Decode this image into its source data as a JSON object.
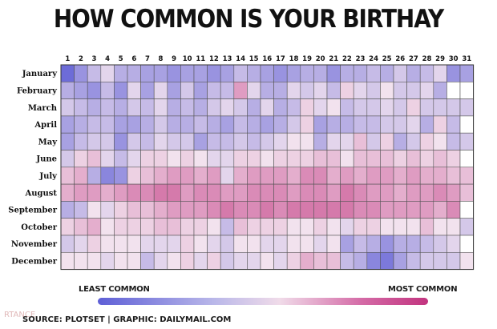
{
  "title": "HOW COMMON IS YOUR BIRTHAY",
  "legend": {
    "low_label": "LEAST COMMON",
    "high_label": "MOST COMMON"
  },
  "source": "SOURCE: PLOTSET | GRAPHIC: DAILYMAIL.COM",
  "watermark": "RTANCE",
  "colors": {
    "least": "#5e5fd6",
    "mid": "#f2e2ee",
    "most": "#c2347f",
    "grid": "#555555"
  },
  "chart_data": {
    "type": "heatmap",
    "title": "HOW COMMON IS YOUR BIRTHAY",
    "x_labels": [
      "1",
      "2",
      "3",
      "4",
      "5",
      "6",
      "7",
      "8",
      "9",
      "10",
      "11",
      "12",
      "13",
      "14",
      "15",
      "16",
      "17",
      "18",
      "19",
      "20",
      "21",
      "22",
      "23",
      "24",
      "25",
      "26",
      "27",
      "28",
      "29",
      "30",
      "31"
    ],
    "y_labels": [
      "January",
      "February",
      "March",
      "April",
      "May",
      "June",
      "July",
      "August",
      "September",
      "October",
      "November",
      "December"
    ],
    "scale": {
      "min": 0,
      "max": 100,
      "min_label": "LEAST COMMON",
      "max_label": "MOST COMMON"
    },
    "values": [
      [
        5,
        20,
        35,
        45,
        30,
        30,
        25,
        25,
        20,
        25,
        25,
        20,
        25,
        35,
        30,
        25,
        20,
        25,
        30,
        30,
        20,
        30,
        30,
        35,
        30,
        40,
        30,
        35,
        45,
        20,
        25
      ],
      [
        30,
        25,
        20,
        35,
        20,
        45,
        25,
        45,
        25,
        40,
        25,
        35,
        35,
        70,
        45,
        30,
        30,
        45,
        40,
        45,
        35,
        55,
        45,
        40,
        50,
        40,
        40,
        45,
        30,
        null,
        null
      ],
      [
        40,
        35,
        30,
        35,
        30,
        40,
        35,
        45,
        30,
        35,
        30,
        40,
        45,
        40,
        30,
        45,
        30,
        35,
        55,
        45,
        50,
        35,
        40,
        40,
        45,
        40,
        55,
        40,
        40,
        40,
        40
      ],
      [
        25,
        30,
        35,
        35,
        25,
        25,
        30,
        40,
        30,
        30,
        35,
        30,
        25,
        35,
        30,
        25,
        30,
        40,
        55,
        25,
        30,
        30,
        35,
        35,
        40,
        40,
        45,
        30,
        55,
        35,
        null
      ],
      [
        25,
        35,
        40,
        40,
        20,
        40,
        35,
        45,
        40,
        40,
        25,
        35,
        35,
        40,
        35,
        40,
        45,
        50,
        50,
        30,
        45,
        45,
        60,
        40,
        55,
        30,
        40,
        55,
        50,
        35,
        40
      ],
      [
        40,
        55,
        60,
        45,
        35,
        45,
        55,
        55,
        50,
        55,
        50,
        45,
        45,
        55,
        55,
        50,
        55,
        55,
        55,
        60,
        60,
        50,
        60,
        60,
        60,
        55,
        60,
        55,
        60,
        55,
        null
      ],
      [
        60,
        65,
        30,
        15,
        20,
        55,
        60,
        65,
        70,
        70,
        65,
        70,
        45,
        65,
        70,
        70,
        70,
        65,
        75,
        75,
        65,
        70,
        65,
        70,
        70,
        65,
        70,
        65,
        65,
        60,
        60
      ],
      [
        65,
        70,
        70,
        65,
        70,
        75,
        75,
        80,
        80,
        70,
        75,
        75,
        70,
        70,
        75,
        75,
        75,
        70,
        75,
        75,
        70,
        80,
        75,
        70,
        70,
        65,
        70,
        70,
        75,
        70,
        60
      ],
      [
        30,
        35,
        50,
        45,
        55,
        60,
        60,
        65,
        70,
        70,
        70,
        75,
        80,
        75,
        75,
        80,
        75,
        80,
        80,
        80,
        80,
        80,
        75,
        75,
        70,
        70,
        70,
        70,
        65,
        75,
        null
      ],
      [
        55,
        60,
        65,
        50,
        55,
        55,
        55,
        60,
        60,
        55,
        55,
        50,
        35,
        60,
        55,
        55,
        55,
        50,
        50,
        55,
        50,
        45,
        55,
        55,
        50,
        50,
        50,
        60,
        50,
        50,
        40
      ],
      [
        40,
        45,
        55,
        50,
        50,
        50,
        45,
        45,
        45,
        55,
        50,
        45,
        40,
        50,
        50,
        45,
        45,
        50,
        50,
        45,
        50,
        25,
        35,
        30,
        20,
        30,
        30,
        35,
        40,
        45,
        null
      ],
      [
        50,
        50,
        50,
        45,
        50,
        50,
        35,
        45,
        50,
        55,
        45,
        55,
        40,
        45,
        45,
        50,
        45,
        55,
        65,
        60,
        60,
        35,
        30,
        15,
        10,
        25,
        35,
        40,
        40,
        40,
        50
      ]
    ]
  }
}
